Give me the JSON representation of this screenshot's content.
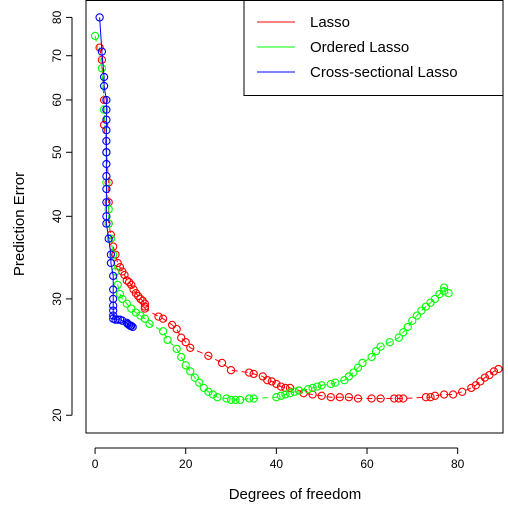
{
  "chart_data": {
    "type": "scatter",
    "xlabel": "Degrees of freedom",
    "ylabel": "Prediction Error",
    "xlim": [
      -2,
      90
    ],
    "ylim": [
      18.8,
      85
    ],
    "y_scale": "log",
    "x_ticks": [
      0,
      20,
      40,
      60,
      80
    ],
    "y_ticks": [
      20,
      30,
      40,
      50,
      60,
      70,
      80
    ],
    "legend_position": "top-right",
    "grid": false,
    "series": [
      {
        "name": "Lasso",
        "color": "#ff0000",
        "points": [
          [
            1,
            72
          ],
          [
            1.5,
            69
          ],
          [
            2,
            60
          ],
          [
            2,
            55
          ],
          [
            2.5,
            50
          ],
          [
            3,
            45
          ],
          [
            3,
            42
          ],
          [
            3,
            39
          ],
          [
            3.5,
            37.5
          ],
          [
            4,
            36
          ],
          [
            4.5,
            35
          ],
          [
            5,
            34
          ],
          [
            5.5,
            33.5
          ],
          [
            6,
            33
          ],
          [
            6.5,
            32.6
          ],
          [
            7,
            32
          ],
          [
            7.5,
            31.8
          ],
          [
            8,
            31.5
          ],
          [
            8.5,
            31
          ],
          [
            9,
            30.6
          ],
          [
            9.5,
            30.3
          ],
          [
            10,
            30
          ],
          [
            10.5,
            29.8
          ],
          [
            11,
            29.5
          ],
          [
            11,
            29.2
          ],
          [
            11,
            29
          ],
          [
            14,
            28.2
          ],
          [
            15,
            28
          ],
          [
            17,
            27.4
          ],
          [
            18,
            27
          ],
          [
            19,
            26.2
          ],
          [
            20,
            25.8
          ],
          [
            21,
            25.3
          ],
          [
            25,
            24.6
          ],
          [
            28,
            24
          ],
          [
            30,
            23.4
          ],
          [
            34,
            23.2
          ],
          [
            35,
            23.1
          ],
          [
            37,
            22.9
          ],
          [
            38,
            22.6
          ],
          [
            39,
            22.5
          ],
          [
            40,
            22.3
          ],
          [
            41,
            22.1
          ],
          [
            42,
            22
          ],
          [
            43,
            22
          ],
          [
            45,
            21.8
          ],
          [
            46,
            21.6
          ],
          [
            48,
            21.5
          ],
          [
            50,
            21.4
          ],
          [
            52,
            21.3
          ],
          [
            54,
            21.3
          ],
          [
            56,
            21.3
          ],
          [
            58,
            21.2
          ],
          [
            61,
            21.2
          ],
          [
            63,
            21.2
          ],
          [
            66,
            21.2
          ],
          [
            67,
            21.2
          ],
          [
            68,
            21.2
          ],
          [
            73,
            21.3
          ],
          [
            74,
            21.3
          ],
          [
            75,
            21.4
          ],
          [
            77,
            21.5
          ],
          [
            79,
            21.5
          ],
          [
            81,
            21.7
          ],
          [
            83,
            22
          ],
          [
            84,
            22.2
          ],
          [
            85,
            22.5
          ],
          [
            86,
            22.8
          ],
          [
            87,
            23
          ],
          [
            88,
            23.3
          ],
          [
            89,
            23.5
          ]
        ]
      },
      {
        "name": "Ordered Lasso",
        "color": "#00ff00",
        "points": [
          [
            0,
            75
          ],
          [
            1.5,
            67
          ],
          [
            2,
            58
          ],
          [
            2.5,
            50
          ],
          [
            2.5,
            45
          ],
          [
            3,
            41
          ],
          [
            3,
            39
          ],
          [
            3.5,
            37
          ],
          [
            4,
            35
          ],
          [
            4.5,
            33
          ],
          [
            5,
            31.5
          ],
          [
            5.5,
            30.5
          ],
          [
            6,
            30
          ],
          [
            7,
            29.5
          ],
          [
            8,
            29
          ],
          [
            9,
            28.6
          ],
          [
            10,
            28.3
          ],
          [
            11,
            28
          ],
          [
            12,
            27.5
          ],
          [
            15,
            26.8
          ],
          [
            16,
            26
          ],
          [
            18,
            25.2
          ],
          [
            19,
            24.5
          ],
          [
            20,
            23.8
          ],
          [
            21,
            23.3
          ],
          [
            22,
            22.8
          ],
          [
            23,
            22.4
          ],
          [
            24,
            22
          ],
          [
            25,
            21.7
          ],
          [
            26,
            21.5
          ],
          [
            27,
            21.3
          ],
          [
            29,
            21.2
          ],
          [
            30,
            21.1
          ],
          [
            31,
            21.1
          ],
          [
            32,
            21.1
          ],
          [
            34,
            21.2
          ],
          [
            35,
            21.2
          ],
          [
            40,
            21.3
          ],
          [
            41,
            21.4
          ],
          [
            42,
            21.5
          ],
          [
            43,
            21.6
          ],
          [
            44,
            21.7
          ],
          [
            45,
            21.8
          ],
          [
            47,
            21.9
          ],
          [
            48,
            22
          ],
          [
            49,
            22.1
          ],
          [
            50,
            22.2
          ],
          [
            52,
            22.3
          ],
          [
            53,
            22.4
          ],
          [
            55,
            22.6
          ],
          [
            56,
            22.9
          ],
          [
            57,
            23.2
          ],
          [
            58,
            23.6
          ],
          [
            59,
            24
          ],
          [
            61,
            24.5
          ],
          [
            62,
            25
          ],
          [
            63,
            25.4
          ],
          [
            65,
            25.8
          ],
          [
            67,
            26.2
          ],
          [
            68,
            26.7
          ],
          [
            69,
            27.2
          ],
          [
            70,
            27.8
          ],
          [
            71,
            28.3
          ],
          [
            72,
            28.8
          ],
          [
            73,
            29.2
          ],
          [
            74,
            29.6
          ],
          [
            75,
            30
          ],
          [
            76,
            30.5
          ],
          [
            77,
            30.8
          ],
          [
            77,
            31.2
          ],
          [
            78,
            30.6
          ]
        ]
      },
      {
        "name": "Cross-sectional Lasso",
        "color": "#0000ff",
        "points": [
          [
            1,
            80
          ],
          [
            1.5,
            71
          ],
          [
            2,
            65
          ],
          [
            2,
            63
          ],
          [
            2.5,
            60
          ],
          [
            2.5,
            58
          ],
          [
            2.5,
            56
          ],
          [
            2.5,
            54
          ],
          [
            2.5,
            52
          ],
          [
            2.5,
            50
          ],
          [
            2.5,
            48
          ],
          [
            2.5,
            46
          ],
          [
            2.5,
            44
          ],
          [
            2.5,
            42
          ],
          [
            2.5,
            40
          ],
          [
            2.5,
            39
          ],
          [
            3,
            37
          ],
          [
            3.5,
            35
          ],
          [
            3.5,
            34
          ],
          [
            4,
            32.5
          ],
          [
            4,
            31
          ],
          [
            4,
            30
          ],
          [
            4,
            29.3
          ],
          [
            4,
            28.8
          ],
          [
            4,
            28.3
          ],
          [
            4,
            28
          ],
          [
            4.5,
            27.9
          ],
          [
            5,
            27.9
          ],
          [
            5.5,
            27.9
          ],
          [
            6,
            27.8
          ],
          [
            7,
            27.6
          ],
          [
            7.2,
            27.5
          ],
          [
            7.5,
            27.4
          ],
          [
            7.8,
            27.3
          ],
          [
            8,
            27.3
          ],
          [
            8.3,
            27.2
          ]
        ]
      }
    ]
  }
}
